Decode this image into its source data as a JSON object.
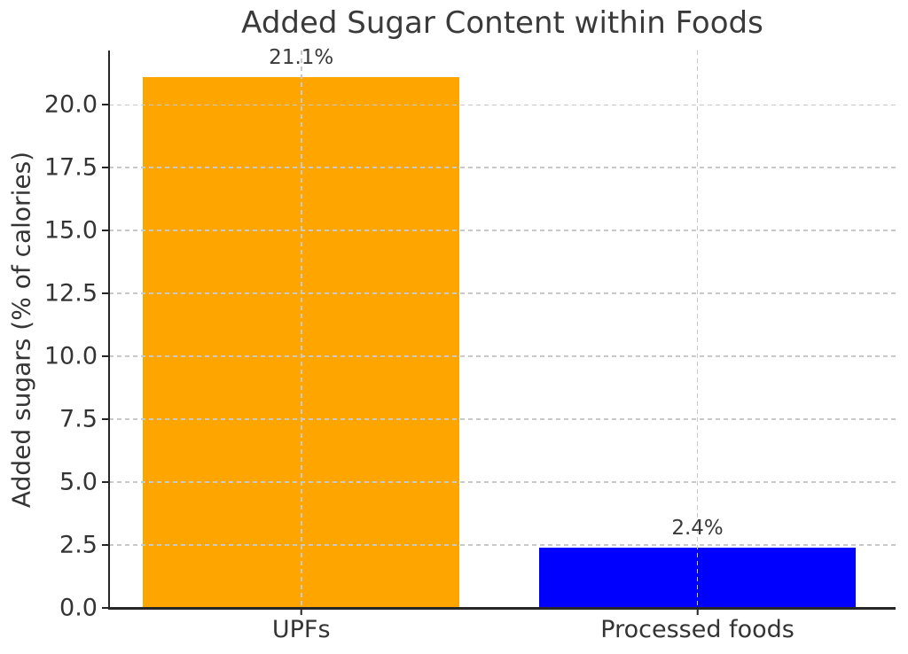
{
  "chart_data": {
    "type": "bar",
    "title": "Added Sugar Content within Foods",
    "categories": [
      "UPFs",
      "Processed foods"
    ],
    "values": [
      21.1,
      2.4
    ],
    "bar_labels": [
      "21.1%",
      "2.4%"
    ],
    "bar_colors": [
      "#ffa500",
      "#0000ff"
    ],
    "xlabel": "",
    "ylabel": "Added sugars (% of calories)",
    "ylim": [
      0,
      22.16
    ],
    "xlim": [
      -0.485,
      1.5
    ],
    "bar_width": 0.8,
    "yticks": [
      0,
      2.5,
      5,
      7.5,
      10,
      12.5,
      15,
      17.5,
      20
    ],
    "ytick_labels": [
      "0.0",
      "2.5",
      "5.0",
      "7.5",
      "10.0",
      "12.5",
      "15.0",
      "17.5",
      "20.0"
    ],
    "grid": true,
    "grid_style": "dashed",
    "grid_on_top_of_bars": true,
    "legend": "none",
    "text_color": "#343434",
    "grid_color": "#c9c9c9",
    "spine_color": "#262626",
    "background_color": "#ffffff"
  }
}
